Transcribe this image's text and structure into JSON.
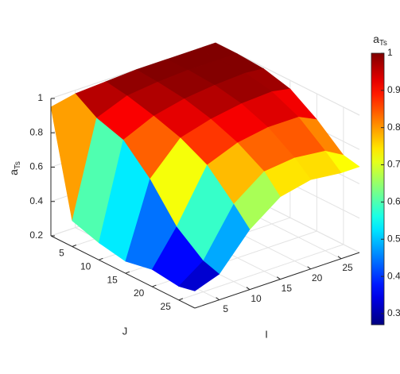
{
  "chart_data": {
    "type": "surface",
    "xlabel": "I",
    "ylabel": "J",
    "zlabel": {
      "base": "a",
      "sub": "Ts"
    },
    "colorbar_label": {
      "base": "a",
      "sub": "Ts"
    },
    "x": [
      1,
      5,
      10,
      15,
      20,
      25,
      28
    ],
    "y": [
      1,
      5,
      10,
      15,
      20,
      25,
      28
    ],
    "z": [
      [
        0.95,
        0.98,
        0.99,
        1.0,
        1.0,
        1.0,
        1.0
      ],
      [
        0.35,
        0.9,
        0.97,
        0.99,
        1.0,
        1.0,
        1.0
      ],
      [
        0.3,
        0.85,
        0.93,
        0.97,
        0.99,
        1.0,
        0.99
      ],
      [
        0.27,
        0.7,
        0.88,
        0.93,
        0.96,
        0.97,
        0.95
      ],
      [
        0.3,
        0.5,
        0.8,
        0.87,
        0.9,
        0.9,
        0.85
      ],
      [
        0.28,
        0.38,
        0.65,
        0.78,
        0.8,
        0.78,
        0.72
      ],
      [
        0.3,
        0.35,
        0.55,
        0.68,
        0.72,
        0.7,
        0.7
      ]
    ],
    "xlim": [
      1,
      28
    ],
    "ylim": [
      1,
      28
    ],
    "zlim": [
      0.2,
      1
    ],
    "xticks": [
      5,
      10,
      15,
      20,
      25
    ],
    "yticks": [
      5,
      10,
      15,
      20,
      25
    ],
    "zticks": [
      0.2,
      0.4,
      0.6,
      0.8,
      1
    ],
    "clim": [
      0.27,
      1
    ],
    "cticks": [
      0.3,
      0.4,
      0.5,
      0.6,
      0.7,
      0.8,
      0.9,
      1
    ],
    "colormap": "jet",
    "grid": true
  }
}
